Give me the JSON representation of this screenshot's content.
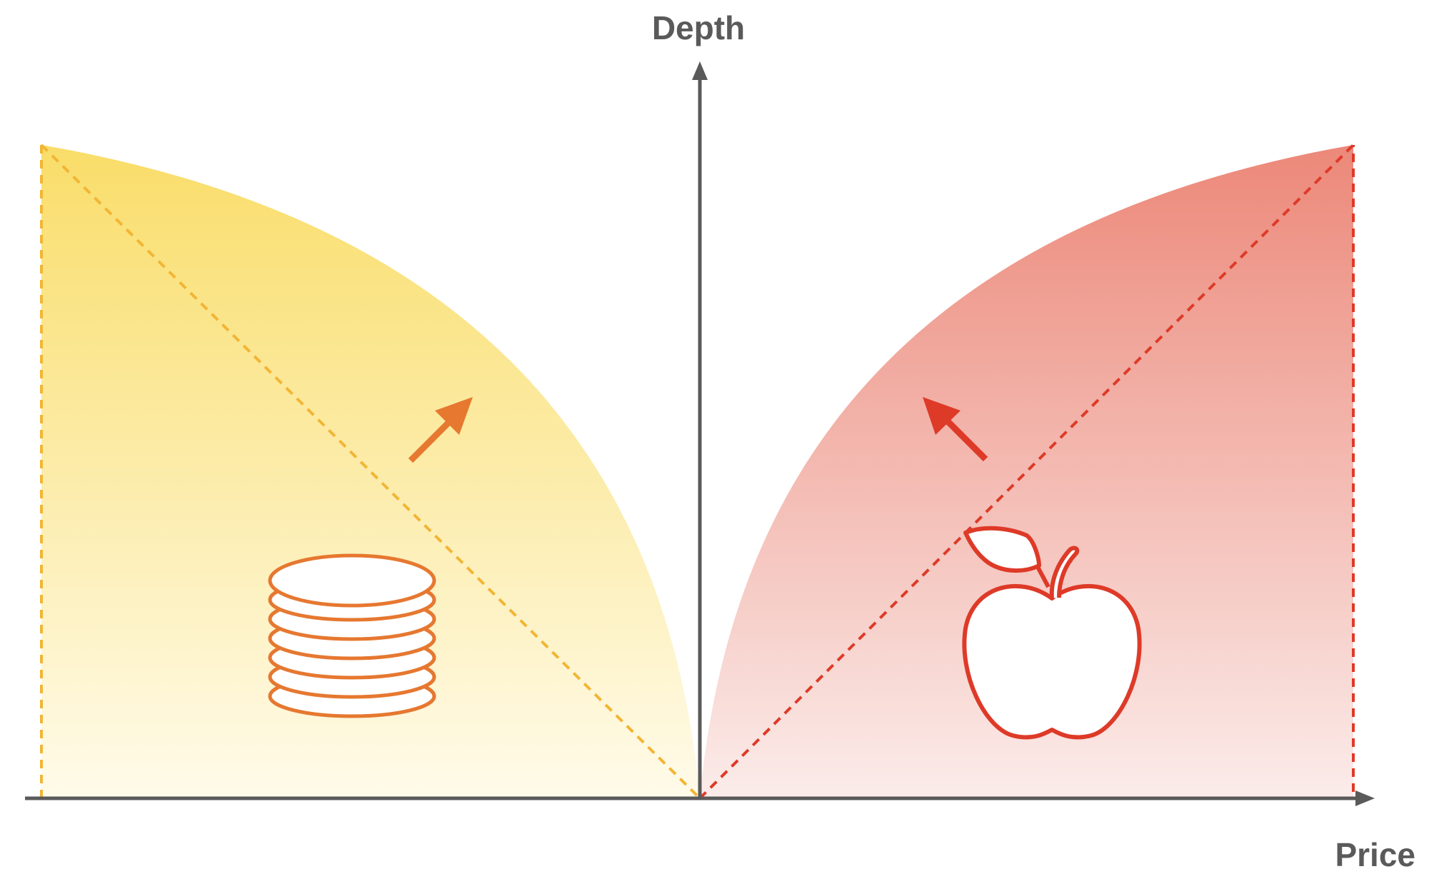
{
  "axes": {
    "y_label": "Depth",
    "x_label": "Price"
  },
  "colors": {
    "axis": "#5a5a5a",
    "bid_fill_top": "#f9dd69",
    "bid_fill_bottom": "#fffbea",
    "bid_outline": "#f2b535",
    "bid_arrow": "#e67830",
    "coin_icon": "#e67830",
    "ask_fill_top": "#ec8879",
    "ask_fill_bottom": "#fbecea",
    "ask_outline": "#de3a28",
    "ask_arrow": "#de3a28",
    "apple_icon": "#de3a28"
  },
  "icons": {
    "left": "coin-stack-icon",
    "right": "apple-icon"
  }
}
